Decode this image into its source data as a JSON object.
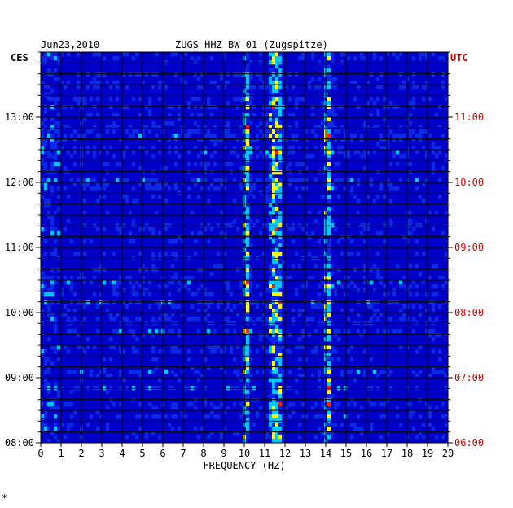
{
  "header": {
    "date": "Jun23,2010",
    "station": "ZUGS HHZ BW 01 (Zugspitze)"
  },
  "left_timezone": "CES",
  "right_timezone": "UTC",
  "footer_mark": "*",
  "chart_data": {
    "type": "heatmap",
    "title": "ZUGS HHZ BW 01 (Zugspitze)",
    "date": "Jun23,2010",
    "xlabel": "FREQUENCY (HZ)",
    "xlim": [
      0,
      20
    ],
    "x_ticks": [
      "0",
      "1",
      "2",
      "3",
      "4",
      "5",
      "6",
      "7",
      "8",
      "9",
      "10",
      "11",
      "12",
      "13",
      "14",
      "15",
      "16",
      "17",
      "18",
      "19",
      "20"
    ],
    "y_left_label": "CES",
    "y_left_ticks": [
      "13:00",
      "12:00",
      "11:00",
      "10:00",
      "09:00",
      "08:00"
    ],
    "y_right_label": "UTC",
    "y_right_ticks": [
      "11:00",
      "10:00",
      "09:00",
      "08:00",
      "07:00",
      "06:00"
    ],
    "colors": {
      "background": "#0000c8",
      "low": "#0a28e6",
      "mid": "#00c8ff",
      "high": "#ffff00",
      "peak": "#ff2000",
      "grid": "#000000",
      "utc_text": "#cc0000"
    },
    "strong_bands_hz": [
      10.1,
      11.4,
      11.7,
      14.1
    ]
  }
}
